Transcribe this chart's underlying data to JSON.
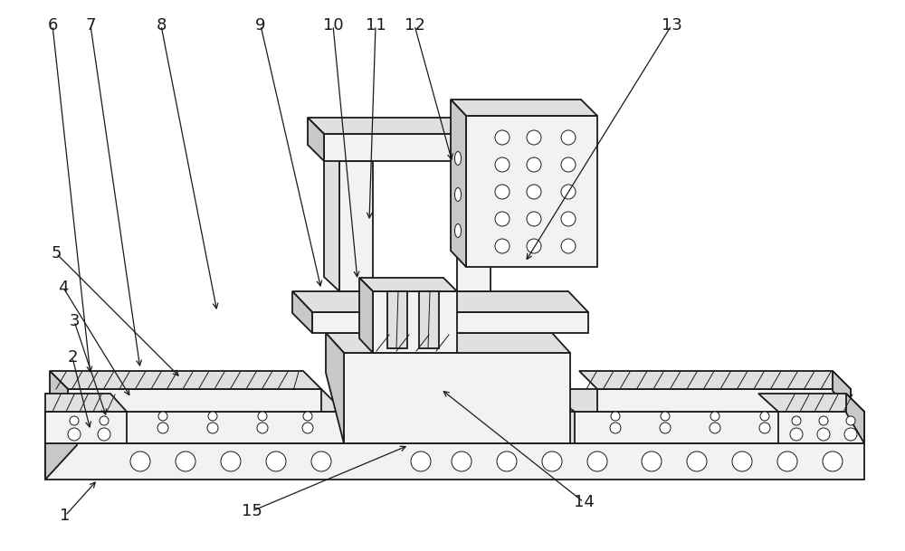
{
  "background_color": "#ffffff",
  "line_color": "#1a1a1a",
  "fig_width": 10.0,
  "fig_height": 6.09,
  "dpi": 100
}
